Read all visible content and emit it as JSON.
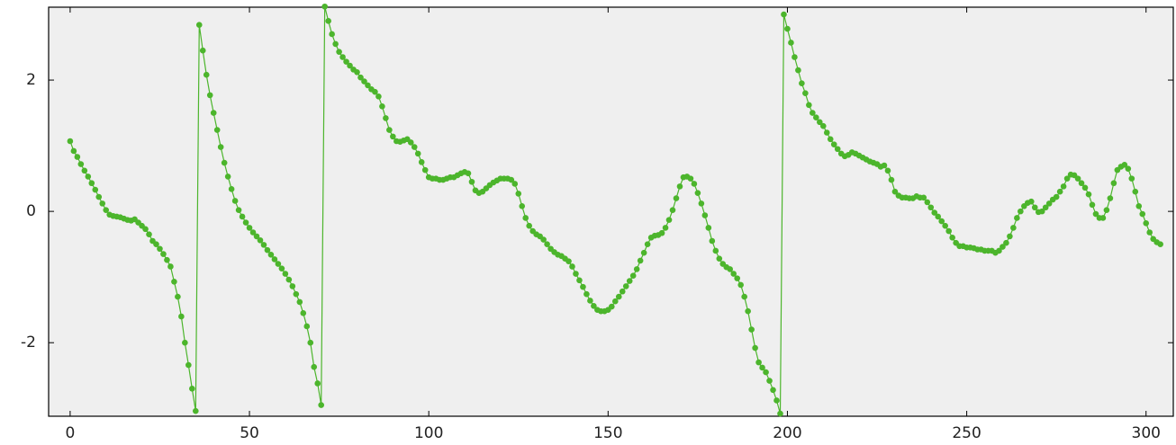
{
  "chart_data": {
    "type": "line",
    "color": "#4cb52c",
    "background": "#efefef",
    "xlim": [
      -6,
      307.6
    ],
    "ylim": [
      -3.12,
      3.11
    ],
    "xticks": [
      0,
      50,
      100,
      150,
      200,
      250,
      300
    ],
    "yticks": [
      -2,
      0,
      2
    ],
    "values": [
      1.07,
      0.92,
      0.83,
      0.72,
      0.62,
      0.53,
      0.43,
      0.33,
      0.22,
      0.12,
      0.02,
      -0.05,
      -0.07,
      -0.08,
      -0.09,
      -0.11,
      -0.13,
      -0.14,
      -0.12,
      -0.17,
      -0.22,
      -0.27,
      -0.35,
      -0.45,
      -0.5,
      -0.57,
      -0.65,
      -0.74,
      -0.84,
      -1.07,
      -1.3,
      -1.6,
      -2.0,
      -2.34,
      -2.7,
      -3.04,
      2.84,
      2.45,
      2.08,
      1.77,
      1.5,
      1.24,
      0.98,
      0.74,
      0.53,
      0.34,
      0.16,
      0.02,
      -0.08,
      -0.17,
      -0.25,
      -0.32,
      -0.38,
      -0.44,
      -0.51,
      -0.59,
      -0.66,
      -0.73,
      -0.8,
      -0.87,
      -0.95,
      -1.04,
      -1.14,
      -1.26,
      -1.38,
      -1.55,
      -1.75,
      -2.0,
      -2.37,
      -2.62,
      -2.95,
      3.12,
      2.9,
      2.7,
      2.55,
      2.43,
      2.35,
      2.28,
      2.22,
      2.16,
      2.12,
      2.04,
      1.98,
      1.92,
      1.86,
      1.82,
      1.75,
      1.6,
      1.42,
      1.24,
      1.14,
      1.07,
      1.06,
      1.08,
      1.1,
      1.05,
      0.98,
      0.88,
      0.75,
      0.63,
      0.52,
      0.5,
      0.5,
      0.48,
      0.48,
      0.5,
      0.52,
      0.52,
      0.55,
      0.58,
      0.6,
      0.58,
      0.45,
      0.32,
      0.28,
      0.3,
      0.35,
      0.4,
      0.44,
      0.47,
      0.5,
      0.5,
      0.5,
      0.48,
      0.42,
      0.27,
      0.08,
      -0.1,
      -0.22,
      -0.3,
      -0.35,
      -0.38,
      -0.43,
      -0.5,
      -0.57,
      -0.62,
      -0.66,
      -0.68,
      -0.72,
      -0.76,
      -0.84,
      -0.95,
      -1.05,
      -1.15,
      -1.26,
      -1.36,
      -1.44,
      -1.5,
      -1.52,
      -1.52,
      -1.5,
      -1.45,
      -1.37,
      -1.3,
      -1.22,
      -1.14,
      -1.06,
      -0.98,
      -0.88,
      -0.75,
      -0.63,
      -0.5,
      -0.4,
      -0.37,
      -0.36,
      -0.33,
      -0.25,
      -0.13,
      0.02,
      0.2,
      0.38,
      0.52,
      0.53,
      0.5,
      0.42,
      0.28,
      0.12,
      -0.06,
      -0.25,
      -0.45,
      -0.6,
      -0.72,
      -0.8,
      -0.85,
      -0.88,
      -0.95,
      -1.02,
      -1.12,
      -1.3,
      -1.52,
      -1.8,
      -2.08,
      -2.3,
      -2.38,
      -2.45,
      -2.58,
      -2.72,
      -2.88,
      -3.08,
      3.0,
      2.78,
      2.57,
      2.35,
      2.15,
      1.95,
      1.8,
      1.62,
      1.5,
      1.43,
      1.36,
      1.3,
      1.2,
      1.1,
      1.02,
      0.95,
      0.88,
      0.84,
      0.86,
      0.9,
      0.88,
      0.85,
      0.82,
      0.79,
      0.76,
      0.74,
      0.72,
      0.68,
      0.7,
      0.62,
      0.48,
      0.3,
      0.24,
      0.21,
      0.21,
      0.2,
      0.2,
      0.23,
      0.21,
      0.21,
      0.14,
      0.06,
      -0.02,
      -0.08,
      -0.15,
      -0.22,
      -0.3,
      -0.4,
      -0.48,
      -0.53,
      -0.53,
      -0.55,
      -0.55,
      -0.56,
      -0.58,
      -0.58,
      -0.6,
      -0.6,
      -0.6,
      -0.63,
      -0.6,
      -0.54,
      -0.48,
      -0.38,
      -0.25,
      -0.1,
      0.0,
      0.08,
      0.13,
      0.15,
      0.06,
      -0.01,
      0.0,
      0.06,
      0.12,
      0.18,
      0.22,
      0.3,
      0.38,
      0.5,
      0.56,
      0.55,
      0.5,
      0.43,
      0.36,
      0.26,
      0.1,
      -0.04,
      -0.1,
      -0.1,
      0.02,
      0.2,
      0.43,
      0.63,
      0.68,
      0.71,
      0.65,
      0.5,
      0.3,
      0.08,
      -0.04,
      -0.18,
      -0.32,
      -0.42,
      -0.47,
      -0.5
    ]
  }
}
